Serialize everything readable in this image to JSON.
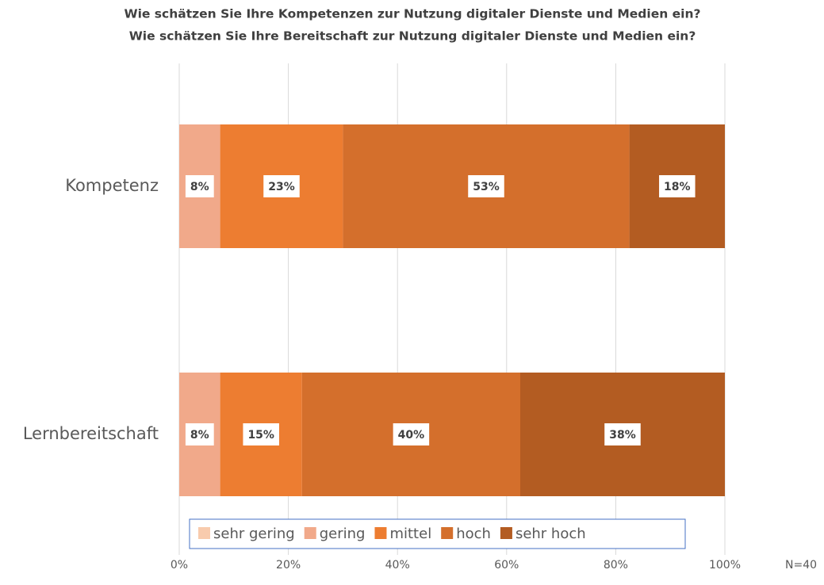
{
  "chart_data": {
    "type": "stacked_bar_horizontal",
    "title": "Wie schätzen Sie Ihre Kompetenzen zur Nutzung digitaler Dienste und Medien ein?",
    "subtitle": "Wie schätzen Sie Ihre Bereitschaft zur Nutzung digitaler Dienste und Medien ein?",
    "categories": [
      "Kompetenz",
      "Lernbereitschaft"
    ],
    "series": [
      {
        "name": "sehr gering",
        "color": "#f8cbad",
        "values": [
          0,
          0
        ]
      },
      {
        "name": "gering",
        "color": "#f1a98a",
        "values": [
          7.5,
          7.5
        ],
        "value_labels": [
          "8%",
          "8%"
        ]
      },
      {
        "name": "mittel",
        "color": "#ed7d31",
        "values": [
          22.5,
          15
        ],
        "value_labels": [
          "23%",
          "15%"
        ]
      },
      {
        "name": "hoch",
        "color": "#d46f2c",
        "values": [
          52.5,
          40
        ],
        "value_labels": [
          "53%",
          "40%"
        ]
      },
      {
        "name": "sehr hoch",
        "color": "#b35c22",
        "values": [
          17.5,
          37.5
        ],
        "value_labels": [
          "18%",
          "38%"
        ]
      }
    ],
    "xlim": [
      0,
      100
    ],
    "xticks": [
      {
        "value": 0,
        "label": "0%"
      },
      {
        "value": 20,
        "label": "20%"
      },
      {
        "value": 40,
        "label": "40%"
      },
      {
        "value": 60,
        "label": "60%"
      },
      {
        "value": 80,
        "label": "80%"
      },
      {
        "value": 100,
        "label": "100%"
      }
    ],
    "grid": true,
    "legend": "bottom",
    "annotation": "N=40"
  }
}
